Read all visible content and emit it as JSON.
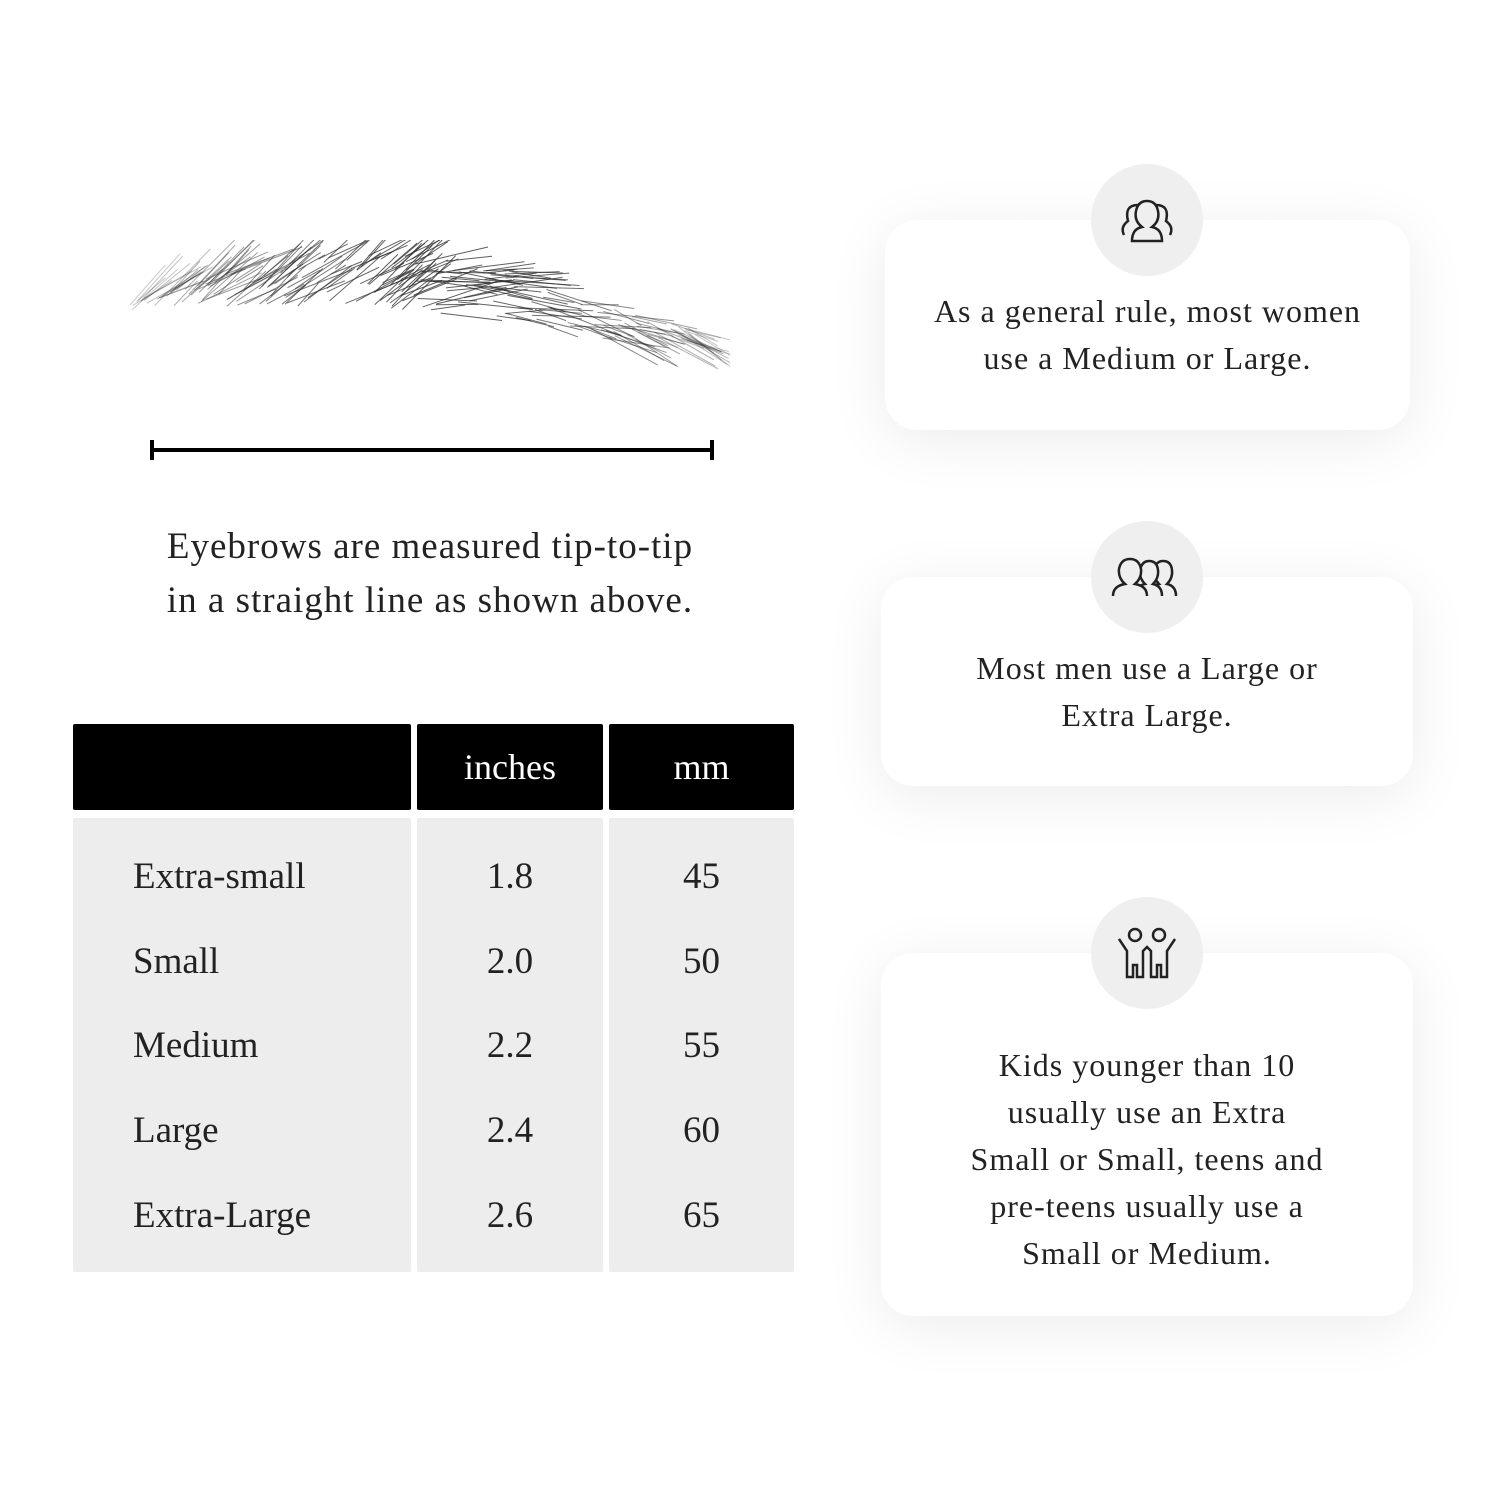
{
  "measurement": {
    "caption_line1": "Eyebrows are measured tip-to-tip",
    "caption_line2": "in a straight line as shown above."
  },
  "table": {
    "headers": [
      "",
      "inches",
      "mm"
    ],
    "rows": [
      {
        "size": "Extra-small",
        "inches": "1.8",
        "mm": "45"
      },
      {
        "size": "Small",
        "inches": "2.0",
        "mm": "50"
      },
      {
        "size": "Medium",
        "inches": "2.2",
        "mm": "55"
      },
      {
        "size": "Large",
        "inches": "2.4",
        "mm": "60"
      },
      {
        "size": "Extra-Large",
        "inches": "2.6",
        "mm": "65"
      }
    ]
  },
  "cards": [
    {
      "icon": "women-group-icon",
      "line1": "As a general rule, most women",
      "line2": "use a Medium or Large."
    },
    {
      "icon": "men-group-icon",
      "line1": "Most men use a Large or",
      "line2": "Extra Large."
    },
    {
      "icon": "kids-icon",
      "line1": "Kids younger than 10",
      "line2": "usually use an Extra",
      "line3": "Small or Small, teens and",
      "line4": "pre-teens usually use a",
      "line5": "Small or Medium."
    }
  ]
}
